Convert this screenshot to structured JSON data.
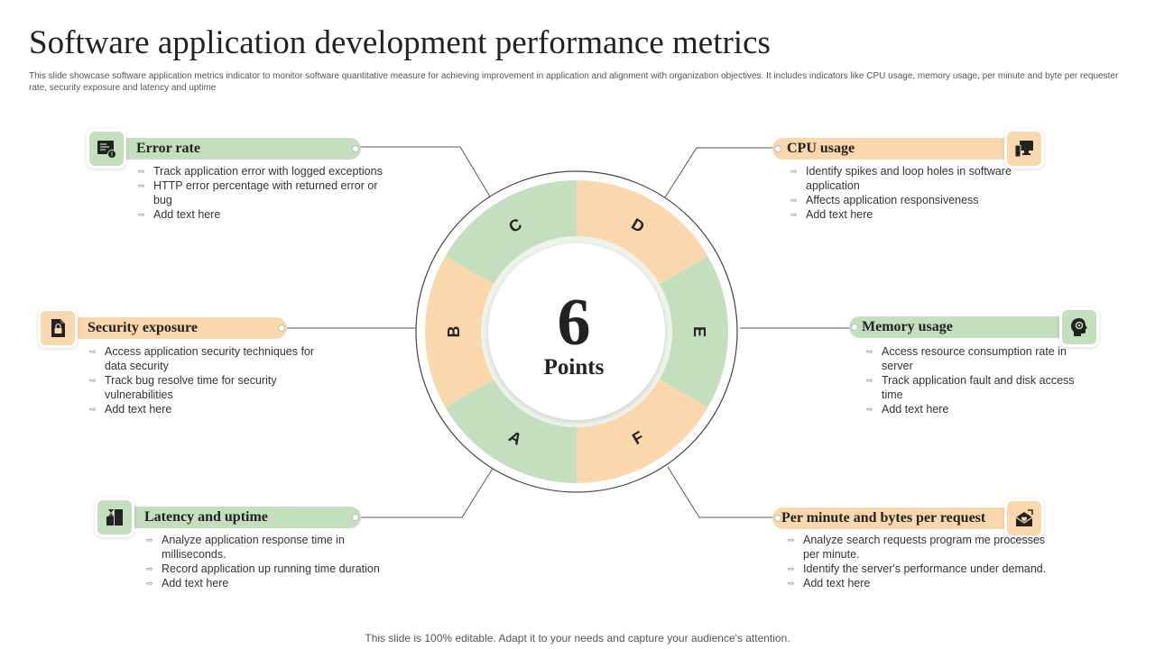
{
  "header": {
    "title": "Software application development performance metrics",
    "subtitle": "This slide showcase software application metrics indicator to monitor software quantitative measure for achieving improvement in application and alignment with organization objectives. It includes indicators like CPU  usage, memory usage, per minute and byte per requester rate, security exposure and latency and uptime"
  },
  "center": {
    "number": "6",
    "label": "Points"
  },
  "ring_letters": [
    "A",
    "B",
    "C",
    "D",
    "E",
    "F"
  ],
  "colors": {
    "green": "#c4dfbe",
    "orange": "#fbd7ad",
    "line": "#555555"
  },
  "metrics": {
    "error_rate": {
      "title": "Error rate",
      "icon": "error-log-icon",
      "points": [
        "Track application error with logged exceptions",
        "HTTP error percentage with returned error or bug",
        "Add text here"
      ]
    },
    "security": {
      "title": "Security exposure",
      "icon": "secure-document-icon",
      "points": [
        "Access application security techniques for data security",
        "Track bug resolve time for security vulnerabilities",
        "Add text here"
      ]
    },
    "latency": {
      "title": "Latency and uptime",
      "icon": "hourglass-blocks-icon",
      "points": [
        "Analyze application response time in milliseconds.",
        "Record application up running time duration",
        "Add text here"
      ]
    },
    "cpu": {
      "title": "CPU usage",
      "icon": "computer-monitor-icon",
      "points": [
        "Identify spikes and loop holes in software application",
        "Affects application responsiveness",
        "Add text here"
      ]
    },
    "memory": {
      "title": "Memory usage",
      "icon": "head-gear-icon",
      "points": [
        "Access resource consumption rate in server",
        "Track application fault and disk access time",
        "Add text here"
      ]
    },
    "per_minute": {
      "title": "Per minute and bytes per request",
      "icon": "mail-request-icon",
      "points": [
        "Analyze search requests program me processes per minute.",
        "Identify the server's performance under demand.",
        "Add text here"
      ]
    }
  },
  "footer": "This slide is 100% editable. Adapt it to your needs and capture your audience's attention."
}
